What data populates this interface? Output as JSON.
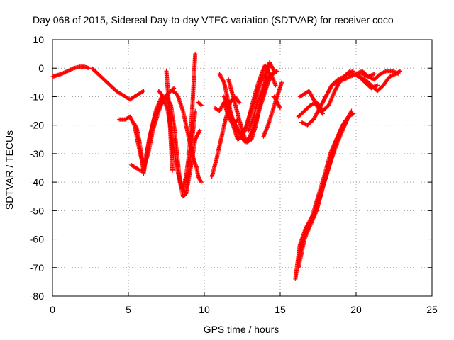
{
  "chart_data": {
    "type": "scatter",
    "title": "Day 068 of 2015, Sidereal Day-to-day VTEC variation (SDTVAR) for receiver coco",
    "xlabel": "GPS time / hours",
    "ylabel": "SDTVAR / TECUs",
    "xlim": [
      0,
      25
    ],
    "ylim": [
      -80,
      10
    ],
    "xticks": [
      0,
      5,
      10,
      15,
      20,
      25
    ],
    "yticks": [
      10,
      0,
      -10,
      -20,
      -30,
      -40,
      -50,
      -60,
      -70,
      -80
    ],
    "grid": true,
    "marker": "+",
    "color": "#ff0000",
    "series": [
      {
        "x": [
          0.0,
          0.3,
          0.6,
          1.0,
          1.4,
          1.8,
          2.1,
          2.4
        ],
        "y": [
          -3,
          -2.5,
          -2,
          -1,
          0,
          0.5,
          0.5,
          0
        ]
      },
      {
        "x": [
          2.6,
          3.0,
          3.4,
          3.8,
          4.2,
          4.5,
          4.8,
          5.1,
          5.4,
          5.7,
          6.0
        ],
        "y": [
          0,
          -2,
          -4,
          -6,
          -8,
          -9,
          -10,
          -11,
          -10,
          -9,
          -8
        ]
      },
      {
        "x": [
          4.4,
          4.8,
          5.1,
          5.4,
          5.7,
          6.0,
          6.3,
          6.6,
          7.0,
          7.4
        ],
        "y": [
          -18,
          -18,
          -17,
          -20,
          -28,
          -35,
          -30,
          -22,
          -15,
          -10
        ]
      },
      {
        "x": [
          5.2,
          5.5,
          5.8,
          6.0,
          6.2,
          6.4,
          6.6,
          6.8,
          7.2,
          7.6,
          8.0
        ],
        "y": [
          -34,
          -35,
          -36,
          -36,
          -30,
          -24,
          -20,
          -16,
          -12,
          -9,
          -7
        ]
      },
      {
        "x": [
          5.5,
          5.7,
          5.9,
          6.0,
          6.2,
          6.5,
          6.8,
          7.2
        ],
        "y": [
          -20,
          -25,
          -32,
          -37,
          -30,
          -22,
          -15,
          -10
        ]
      },
      {
        "x": [
          7.0,
          7.3,
          7.6,
          7.9,
          8.2,
          8.5,
          8.8,
          9.1,
          9.4,
          9.7
        ],
        "y": [
          -8,
          -10,
          -15,
          -25,
          -35,
          -42,
          -44,
          -35,
          -25,
          -22
        ]
      },
      {
        "x": [
          7.4,
          7.6,
          7.8,
          8.0,
          8.2,
          8.4,
          8.6,
          8.8,
          9.0,
          9.2,
          9.4
        ],
        "y": [
          -10,
          -11,
          -13,
          -20,
          -30,
          -40,
          -45,
          -44,
          -35,
          -25,
          -15
        ]
      },
      {
        "x": [
          7.9,
          8.2,
          8.6,
          9.0,
          9.3,
          9.5,
          9.6,
          9.8
        ],
        "y": [
          -8,
          -9,
          -15,
          -25,
          -32,
          -35,
          -38,
          -40
        ]
      },
      {
        "x": [
          7.5,
          7.6,
          7.7,
          7.8,
          7.9
        ],
        "y": [
          -1,
          -8,
          -16,
          -26,
          -36
        ]
      },
      {
        "x": [
          8.6,
          8.8,
          9.0,
          9.2,
          9.4
        ],
        "y": [
          -42,
          -38,
          -30,
          -15,
          5
        ]
      },
      {
        "x": [
          9.6,
          9.8
        ],
        "y": [
          -12,
          -13
        ]
      },
      {
        "x": [
          10.5,
          10.8,
          11.1,
          11.4,
          11.7,
          12.0,
          12.3
        ],
        "y": [
          -38,
          -32,
          -25,
          -18,
          -12,
          -10,
          -12
        ]
      },
      {
        "x": [
          10.7,
          11.0,
          11.3,
          11.6,
          11.9,
          12.2
        ],
        "y": [
          -14,
          -15,
          -12,
          -17,
          -20,
          -18
        ]
      },
      {
        "x": [
          11.0,
          11.3,
          11.6,
          11.9,
          12.2,
          12.5,
          12.8,
          13.1,
          13.4,
          13.7,
          14.0,
          14.3
        ],
        "y": [
          -2,
          -5,
          -12,
          -20,
          -25,
          -24,
          -20,
          -14,
          -8,
          -3,
          1,
          -2
        ]
      },
      {
        "x": [
          11.3,
          11.6,
          11.9,
          12.2,
          12.5,
          12.8,
          13.1,
          13.4,
          13.7,
          14.0,
          14.3,
          14.6
        ],
        "y": [
          -10,
          -14,
          -18,
          -22,
          -23,
          -20,
          -15,
          -10,
          -5,
          -2,
          2,
          -1
        ]
      },
      {
        "x": [
          11.6,
          11.9,
          12.2,
          12.5,
          12.8,
          13.1,
          13.4,
          13.7,
          14.0,
          14.3
        ],
        "y": [
          -4,
          -10,
          -16,
          -22,
          -26,
          -25,
          -20,
          -12,
          -5,
          2
        ]
      },
      {
        "x": [
          12.1,
          12.4,
          12.7,
          13.0,
          13.3,
          13.6,
          13.9,
          14.2,
          14.5,
          14.8
        ],
        "y": [
          -20,
          -24,
          -26,
          -24,
          -20,
          -15,
          -10,
          -5,
          -2,
          -1
        ]
      },
      {
        "x": [
          12.9,
          13.2,
          13.5,
          13.8,
          14.1,
          14.4,
          14.7
        ],
        "y": [
          -22,
          -18,
          -12,
          -8,
          -4,
          -2,
          -6
        ]
      },
      {
        "x": [
          13.9,
          14.2,
          14.5,
          14.8,
          15.1
        ],
        "y": [
          -24,
          -20,
          -15,
          -10,
          -5
        ]
      },
      {
        "x": [
          14.6,
          14.8,
          15.0
        ],
        "y": [
          -10,
          -12,
          -14
        ]
      },
      {
        "x": [
          16.0,
          16.3,
          16.7,
          17.1,
          17.5,
          17.9,
          18.3,
          18.7,
          19.1,
          19.5
        ],
        "y": [
          -74,
          -62,
          -56,
          -52,
          -45,
          -38,
          -30,
          -25,
          -20,
          -17
        ]
      },
      {
        "x": [
          16.2,
          16.6,
          17.0,
          17.4,
          17.8,
          18.2,
          18.6,
          19.0,
          19.4,
          19.7
        ],
        "y": [
          -70,
          -60,
          -55,
          -50,
          -42,
          -35,
          -28,
          -22,
          -18,
          -15
        ]
      },
      {
        "x": [
          16.3,
          16.7,
          17.1,
          17.5,
          17.9,
          18.3,
          18.7,
          19.1,
          19.5,
          19.8
        ],
        "y": [
          -64,
          -57,
          -53,
          -48,
          -40,
          -33,
          -27,
          -22,
          -17,
          -16
        ]
      },
      {
        "x": [
          16.2,
          16.6,
          17.0,
          17.4,
          17.8,
          18.2,
          18.6,
          19.0,
          19.4,
          19.8
        ],
        "y": [
          -17,
          -15,
          -13,
          -12,
          -15,
          -13,
          -8,
          -4,
          -2,
          -1
        ]
      },
      {
        "x": [
          16.4,
          16.8,
          17.2,
          17.6,
          18.0,
          18.4,
          18.8,
          19.2,
          19.6
        ],
        "y": [
          -19,
          -20,
          -18,
          -14,
          -10,
          -6,
          -4,
          -3,
          -1
        ]
      },
      {
        "x": [
          16.3,
          16.6,
          16.9,
          17.2,
          17.5,
          17.8
        ],
        "y": [
          -10,
          -9,
          -8,
          -11,
          -14,
          -16
        ]
      },
      {
        "x": [
          17.6,
          18.0,
          18.4,
          18.8,
          19.2,
          19.6,
          20.0,
          20.4,
          20.8,
          21.2
        ],
        "y": [
          -14,
          -10,
          -6,
          -5,
          -4,
          -3,
          -2,
          -2,
          -3,
          -2
        ]
      },
      {
        "x": [
          20.0,
          20.4,
          20.8,
          21.2,
          21.6,
          22.0,
          22.4,
          22.8
        ],
        "y": [
          -2,
          -1,
          -3,
          -4,
          -2,
          -1,
          -1,
          -2
        ]
      },
      {
        "x": [
          20.2,
          20.6,
          21.0,
          21.4,
          21.8,
          22.2,
          22.6,
          22.9
        ],
        "y": [
          -3,
          -4,
          -6,
          -8,
          -6,
          -3,
          -2,
          -1
        ]
      },
      {
        "x": [
          19.5,
          19.8,
          20.2,
          20.6,
          21.0,
          21.4
        ],
        "y": [
          -2,
          -2,
          -3,
          -5,
          -7,
          -6
        ]
      }
    ]
  }
}
